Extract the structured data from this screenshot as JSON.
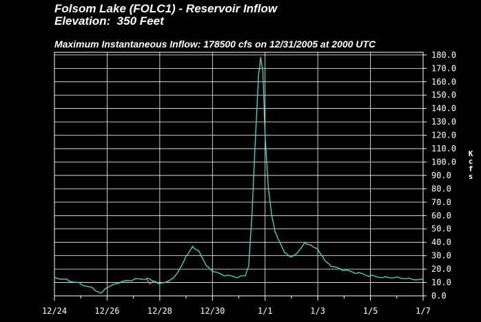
{
  "header": {
    "title_line1": "Folsom Lake (FOLC1) - Reservoir Inflow",
    "title_line2": "Elevation:  350 Feet",
    "subtitle": "Maximum Instantaneous Inflow: 178500 cfs on 12/31/2005 at 2000 UTC"
  },
  "chart_data": {
    "type": "line",
    "title": "Folsom Lake (FOLC1) - Reservoir Inflow",
    "ylabel": "Kcfs",
    "xlim_days": [
      0,
      14
    ],
    "ylim": [
      0,
      182
    ],
    "grid": true,
    "x_ticks": [
      "12/24",
      "12/26",
      "12/28",
      "12/30",
      "1/1",
      "1/3",
      "1/5",
      "1/7"
    ],
    "y_ticks": [
      "0.0",
      "10.0",
      "20.0",
      "30.0",
      "40.0",
      "50.0",
      "60.0",
      "70.0",
      "80.0",
      "90.0",
      "100.0",
      "110.0",
      "120.0",
      "130.0",
      "140.0",
      "150.0",
      "160.0",
      "170.0",
      "180.0"
    ],
    "series": [
      {
        "color": "#40e0d0",
        "x_dates": [
          "12/24 00:00",
          "12/24 12:00",
          "12/25 00:00",
          "12/25 12:00",
          "12/25 18:00",
          "12/26 00:00",
          "12/26 12:00",
          "12/27 00:00",
          "12/27 12:00",
          "12/27 18:00",
          "12/28 00:00",
          "12/28 12:00",
          "12/28 18:00",
          "12/29 00:00",
          "12/29 06:00",
          "12/29 12:00",
          "12/29 18:00",
          "12/30 00:00",
          "12/30 12:00",
          "12/31 00:00",
          "12/31 06:00",
          "12/31 09:00",
          "12/31 12:00",
          "12/31 15:00",
          "12/31 18:00",
          "12/31 20:00",
          "12/31 22:00",
          "1/1 00:00",
          "1/1 03:00",
          "1/1 06:00",
          "1/1 09:00",
          "1/1 12:00",
          "1/1 18:00",
          "1/2 00:00",
          "1/2 06:00",
          "1/2 12:00",
          "1/2 18:00",
          "1/3 00:00",
          "1/3 06:00",
          "1/3 12:00",
          "1/4 00:00",
          "1/4 12:00",
          "1/5 00:00",
          "1/5 12:00",
          "1/6 00:00",
          "1/6 12:00",
          "1/7 00:00"
        ],
        "y": [
          14,
          12,
          9,
          5,
          2,
          6,
          10,
          12,
          13,
          11,
          9,
          13,
          20,
          30,
          37,
          33,
          23,
          18,
          15,
          14,
          15,
          22,
          60,
          115,
          165,
          178.5,
          168,
          120,
          80,
          60,
          48,
          42,
          32,
          29,
          33,
          40,
          38,
          35,
          27,
          22,
          19,
          17,
          15,
          14,
          14,
          13,
          12
        ]
      },
      {
        "color": "#ff8c00",
        "x_dates": [
          "12/27 12:00",
          "12/27 15:00",
          "12/27 18:00"
        ],
        "y": [
          13,
          9,
          11
        ]
      }
    ]
  }
}
